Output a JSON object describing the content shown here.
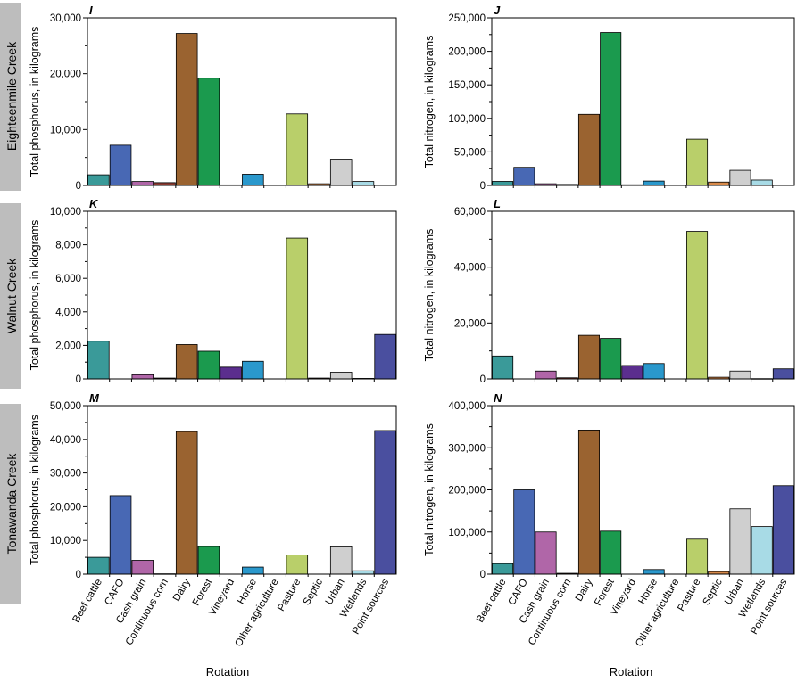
{
  "creeks": [
    "Eighteenmile Creek",
    "Walnut Creek",
    "Tonawanda Creek"
  ],
  "xlabel": "Rotation",
  "categories": [
    "Beef cattle",
    "CAFO",
    "Cash grain",
    "Continuous corn",
    "Dairy",
    "Forest",
    "Vineyard",
    "Horse",
    "Other agriculture",
    "Pasture",
    "Septic",
    "Urban",
    "Wetlands",
    "Point sources"
  ],
  "colors": [
    "#3a9a99",
    "#4868b4",
    "#b066a8",
    "#8a3a30",
    "#9a6330",
    "#1b9a4e",
    "#5b2e8e",
    "#2a98cc",
    "#c6d37a",
    "#b9cf6a",
    "#d88a4a",
    "#cfcfcf",
    "#a8dbe6",
    "#4a4f9f"
  ],
  "chart_data": [
    {
      "type": "bar",
      "panel": "I",
      "creek": "Eighteenmile Creek",
      "ylabel": "Total phosphorus, in kilograms",
      "ylim": [
        0,
        30000
      ],
      "ticks": [
        0,
        10000,
        20000,
        30000
      ],
      "tick_labels": [
        "0",
        "10,000",
        "20,000",
        "30,000"
      ],
      "values": [
        1900,
        7200,
        700,
        500,
        27200,
        19200,
        100,
        2000,
        0,
        12800,
        300,
        4700,
        700,
        0
      ]
    },
    {
      "type": "bar",
      "panel": "J",
      "creek": "Eighteenmile Creek",
      "ylabel": "Total nitrogen, in kilograms",
      "ylim": [
        0,
        250000
      ],
      "ticks": [
        0,
        50000,
        100000,
        150000,
        200000,
        250000
      ],
      "tick_labels": [
        "0",
        "50,000",
        "100,000",
        "150,000",
        "200,000",
        "250,000"
      ],
      "values": [
        6000,
        27000,
        2500,
        1500,
        106000,
        228000,
        1000,
        6500,
        0,
        69000,
        5000,
        22500,
        8000,
        0
      ]
    },
    {
      "type": "bar",
      "panel": "K",
      "creek": "Walnut Creek",
      "ylabel": "Total phosphorus, in kilograms",
      "ylim": [
        0,
        10000
      ],
      "ticks": [
        0,
        2000,
        4000,
        6000,
        8000,
        10000
      ],
      "tick_labels": [
        "0",
        "2,000",
        "4,000",
        "6,000",
        "8,000",
        "10,000"
      ],
      "values": [
        2250,
        0,
        250,
        50,
        2050,
        1650,
        700,
        1050,
        0,
        8400,
        50,
        400,
        30,
        2650
      ]
    },
    {
      "type": "bar",
      "panel": "L",
      "creek": "Walnut Creek",
      "ylabel": "Total nitrogen, in kilograms",
      "ylim": [
        0,
        60000
      ],
      "ticks": [
        0,
        20000,
        40000,
        60000
      ],
      "tick_labels": [
        "0",
        "20,000",
        "40,000",
        "60,000"
      ],
      "values": [
        8200,
        0,
        2800,
        400,
        15600,
        14500,
        4800,
        5500,
        0,
        52800,
        600,
        2800,
        100,
        3600
      ]
    },
    {
      "type": "bar",
      "panel": "M",
      "creek": "Tonawanda Creek",
      "ylabel": "Total phosphorus, in kilograms",
      "ylim": [
        0,
        50000
      ],
      "ticks": [
        0,
        10000,
        20000,
        30000,
        40000,
        50000
      ],
      "tick_labels": [
        "0",
        "10,000",
        "20,000",
        "30,000",
        "40,000",
        "50,000"
      ],
      "values": [
        5000,
        23300,
        4100,
        100,
        42300,
        8200,
        0,
        2100,
        0,
        5700,
        0,
        8100,
        1000,
        42600
      ]
    },
    {
      "type": "bar",
      "panel": "N",
      "creek": "Tonawanda Creek",
      "ylabel": "Total nitrogen, in kilograms",
      "ylim": [
        0,
        400000
      ],
      "ticks": [
        0,
        100000,
        200000,
        300000,
        400000
      ],
      "tick_labels": [
        "0",
        "100,000",
        "200,000",
        "300,000",
        "400,000"
      ],
      "values": [
        25000,
        200000,
        100000,
        2000,
        342000,
        102000,
        0,
        11000,
        0,
        83000,
        6000,
        155000,
        113000,
        210000
      ]
    }
  ]
}
